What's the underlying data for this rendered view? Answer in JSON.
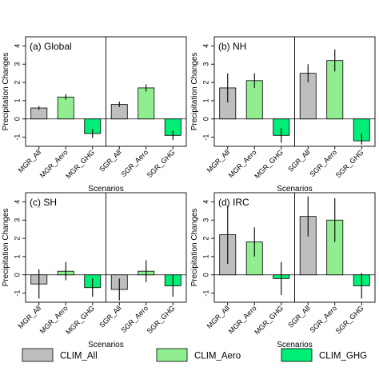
{
  "chart_data": {
    "type": "bar",
    "layout": "2x2 panels",
    "ylabel": "Precipitation Changes",
    "xlabel": "Scenarios",
    "ylim": [
      -1.5,
      4.5
    ],
    "yticks": [
      -1,
      0,
      1,
      2,
      3,
      4
    ],
    "categories": [
      "MGR_All",
      "MGR_Aero",
      "MGR_GHG",
      "SGR_All",
      "SGR_Aero",
      "SGR_GHG"
    ],
    "legend": {
      "placement": "bottom",
      "entries": [
        {
          "label": "CLIM_All",
          "color": "#bebebe"
        },
        {
          "label": "CLIM_Aero",
          "color": "#90ee90"
        },
        {
          "label": "CLIM_GHG",
          "color": "#00ee76"
        }
      ]
    },
    "panels": [
      {
        "title": "(a) Global",
        "values": [
          0.6,
          1.2,
          -0.8,
          0.8,
          1.7,
          -0.9
        ],
        "err_low": [
          0.5,
          1.05,
          -1.05,
          0.65,
          1.5,
          -1.15
        ],
        "err_high": [
          0.7,
          1.35,
          -0.55,
          0.95,
          1.9,
          -0.65
        ]
      },
      {
        "title": "(b) NH",
        "values": [
          1.7,
          2.1,
          -0.9,
          2.5,
          3.2,
          -1.2
        ],
        "err_low": [
          0.9,
          1.7,
          -1.3,
          2.0,
          2.6,
          -1.4
        ],
        "err_high": [
          2.5,
          2.5,
          -0.5,
          3.0,
          3.8,
          -0.8
        ]
      },
      {
        "title": "(c) SH",
        "values": [
          -0.5,
          0.2,
          -0.7,
          -0.8,
          0.2,
          -0.6
        ],
        "err_low": [
          -1.3,
          -0.3,
          -1.2,
          -1.4,
          -0.4,
          -1.2
        ],
        "err_high": [
          0.3,
          0.7,
          -0.2,
          -0.2,
          0.8,
          0.0
        ]
      },
      {
        "title": "(d) IRC",
        "values": [
          2.2,
          1.8,
          -0.2,
          3.2,
          3.0,
          -0.6
        ],
        "err_low": [
          0.6,
          1.0,
          -1.1,
          2.1,
          1.8,
          -1.3
        ],
        "err_high": [
          3.8,
          2.6,
          0.7,
          4.3,
          4.2,
          0.1
        ]
      }
    ]
  }
}
